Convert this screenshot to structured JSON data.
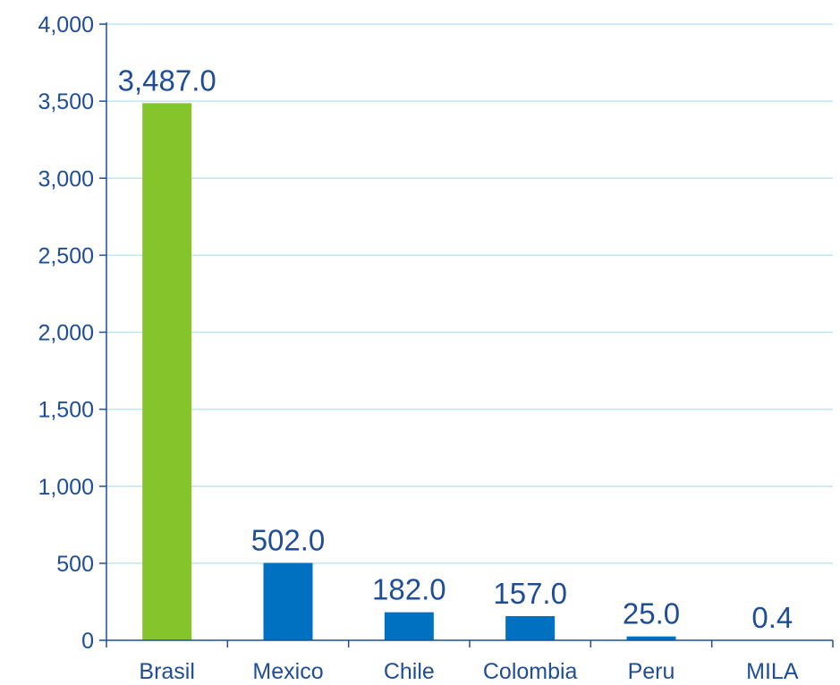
{
  "chart_data": {
    "type": "bar",
    "title": "",
    "xlabel": "",
    "ylabel": "",
    "categories": [
      "Brasil",
      "Mexico",
      "Chile",
      "Colombia",
      "Peru",
      "MILA"
    ],
    "values": [
      3487.0,
      502.0,
      182.0,
      157.0,
      25.0,
      0.4
    ],
    "data_labels": [
      "3,487.0",
      "502.0",
      "182.0",
      "157.0",
      "25.0",
      "0.4"
    ],
    "bar_colors": [
      "#85c52b",
      "#0070c0",
      "#0070c0",
      "#0070c0",
      "#0070c0",
      "#0070c0"
    ],
    "ylim": [
      0,
      4000
    ],
    "yticks": [
      0,
      500,
      1000,
      1500,
      2000,
      2500,
      3000,
      3500,
      4000
    ],
    "ytick_labels": [
      "0",
      "500",
      "1,000",
      "1,500",
      "2,000",
      "2,500",
      "3,000",
      "3,500",
      "4,000"
    ],
    "grid": true,
    "legend": "none",
    "text_color": "#1f4e96",
    "grid_color": "#bfe6f0",
    "axis_color": "#1f4e96"
  }
}
